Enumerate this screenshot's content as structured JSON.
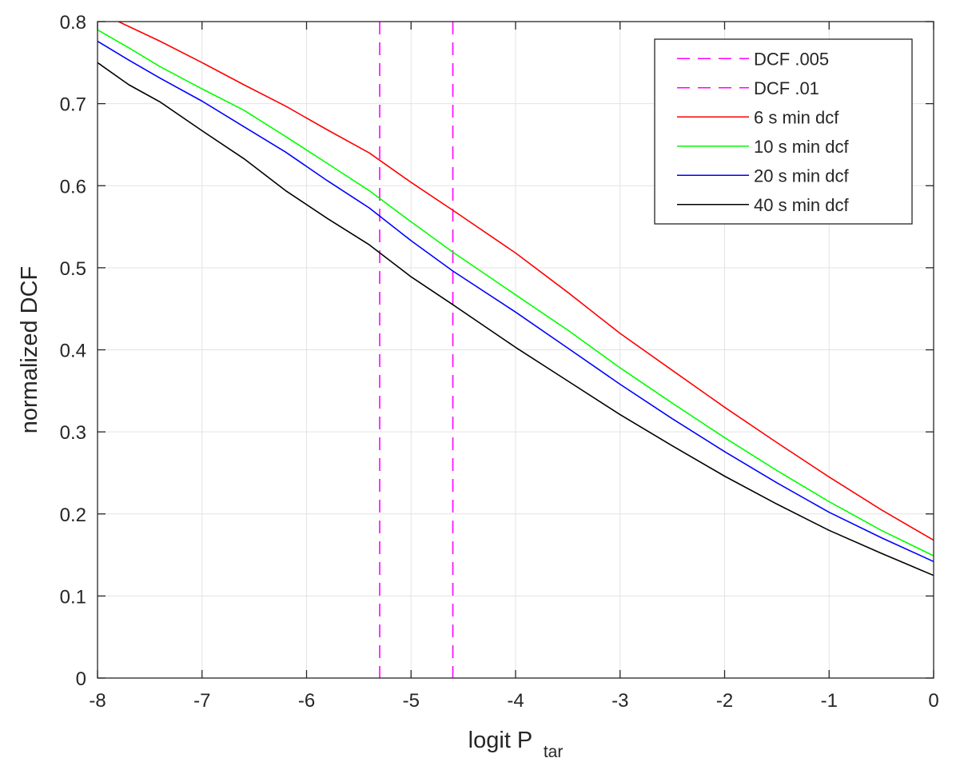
{
  "chart_data": {
    "type": "line",
    "title": "",
    "xlabel": "logit P",
    "xlabel_subscript": "tar",
    "ylabel": "normalized DCF",
    "xlim": [
      -8,
      0
    ],
    "ylim": [
      0,
      0.8
    ],
    "xticks": [
      -8,
      -7,
      -6,
      -5,
      -4,
      -3,
      -2,
      -1,
      0
    ],
    "xtick_labels": [
      "-8",
      "-7",
      "-6",
      "-5",
      "-4",
      "-3",
      "-2",
      "-1",
      "0"
    ],
    "yticks": [
      0,
      0.1,
      0.2,
      0.3,
      0.4,
      0.5,
      0.6,
      0.7,
      0.8
    ],
    "ytick_labels": [
      "0",
      "0.1",
      "0.2",
      "0.3",
      "0.4",
      "0.5",
      "0.6",
      "0.7",
      "0.8"
    ],
    "grid": true,
    "legend_position": "top-right",
    "vertical_lines": [
      {
        "name": "DCF .005",
        "x": -5.3,
        "color": "#ff00ff",
        "style": "dashed"
      },
      {
        "name": "DCF .01",
        "x": -4.6,
        "color": "#ff00ff",
        "style": "dashed"
      }
    ],
    "series": [
      {
        "name": "6 s min dcf",
        "color": "#ff0000",
        "x": [
          -7.8,
          -7.4,
          -7.0,
          -6.6,
          -6.2,
          -5.8,
          -5.4,
          -5.0,
          -4.6,
          -4.0,
          -3.5,
          -3.0,
          -2.5,
          -2.0,
          -1.5,
          -1.0,
          -0.5,
          0.0
        ],
        "y": [
          0.8,
          0.776,
          0.75,
          0.723,
          0.697,
          0.668,
          0.64,
          0.604,
          0.57,
          0.518,
          0.47,
          0.42,
          0.375,
          0.33,
          0.287,
          0.245,
          0.205,
          0.168
        ]
      },
      {
        "name": "10 s min dcf",
        "color": "#00ff00",
        "x": [
          -8.0,
          -7.7,
          -7.4,
          -7.0,
          -6.6,
          -6.2,
          -5.8,
          -5.4,
          -5.0,
          -4.6,
          -4.0,
          -3.5,
          -3.0,
          -2.5,
          -2.0,
          -1.5,
          -1.0,
          -0.5,
          0.0
        ],
        "y": [
          0.79,
          0.768,
          0.745,
          0.718,
          0.692,
          0.66,
          0.627,
          0.594,
          0.556,
          0.519,
          0.467,
          0.424,
          0.378,
          0.335,
          0.293,
          0.253,
          0.215,
          0.18,
          0.149
        ]
      },
      {
        "name": "20 s min dcf",
        "color": "#0000ff",
        "x": [
          -8.0,
          -7.7,
          -7.4,
          -7.0,
          -6.6,
          -6.2,
          -5.8,
          -5.4,
          -5.0,
          -4.6,
          -4.0,
          -3.5,
          -3.0,
          -2.5,
          -2.0,
          -1.5,
          -1.0,
          -0.5,
          0.0
        ],
        "y": [
          0.776,
          0.753,
          0.731,
          0.703,
          0.672,
          0.641,
          0.606,
          0.573,
          0.533,
          0.496,
          0.446,
          0.402,
          0.358,
          0.316,
          0.276,
          0.238,
          0.202,
          0.171,
          0.142
        ]
      },
      {
        "name": "40 s min dcf",
        "color": "#000000",
        "x": [
          -8.0,
          -7.7,
          -7.4,
          -7.0,
          -6.6,
          -6.2,
          -5.8,
          -5.4,
          -5.0,
          -4.6,
          -4.0,
          -3.5,
          -3.0,
          -2.5,
          -2.0,
          -1.5,
          -1.0,
          -0.5,
          0.0
        ],
        "y": [
          0.75,
          0.723,
          0.702,
          0.667,
          0.633,
          0.594,
          0.56,
          0.528,
          0.489,
          0.455,
          0.403,
          0.362,
          0.321,
          0.283,
          0.246,
          0.212,
          0.18,
          0.152,
          0.125
        ]
      }
    ]
  }
}
